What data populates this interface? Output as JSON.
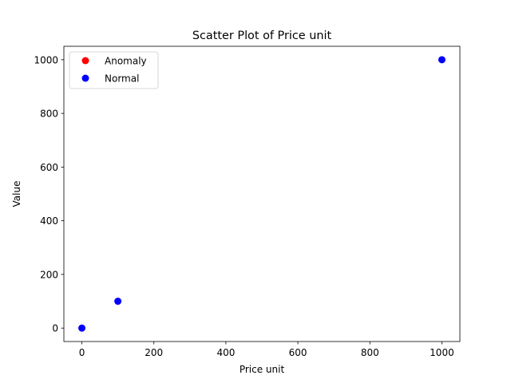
{
  "chart_data": {
    "type": "scatter",
    "title": "Scatter Plot of Price unit",
    "xlabel": "Price unit",
    "ylabel": "Value",
    "xlim": [
      -50,
      1050
    ],
    "ylim": [
      -50,
      1050
    ],
    "xticks": [
      0,
      200,
      400,
      600,
      800,
      1000
    ],
    "yticks": [
      0,
      200,
      400,
      600,
      800,
      1000
    ],
    "grid": false,
    "legend_position": "top-left",
    "series": [
      {
        "name": "Anomaly",
        "color": "#ff0000",
        "points": []
      },
      {
        "name": "Normal",
        "color": "#0000ff",
        "points": [
          [
            0,
            0
          ],
          [
            100,
            100
          ],
          [
            1000,
            1000
          ]
        ]
      }
    ]
  }
}
